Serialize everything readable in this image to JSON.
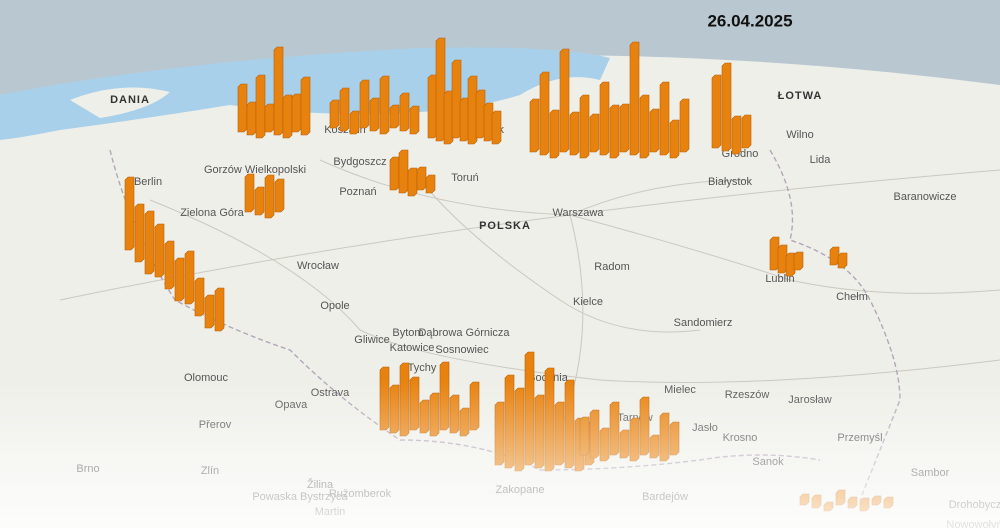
{
  "date": "26.04.2025",
  "labels": [
    "DANIA",
    "Koszalin",
    "Gdańsk",
    "Bydgoszcz",
    "Toruń",
    "Poznań",
    "Gorzów Wielkopolski",
    "Berlin",
    "Zielona Góra",
    "POLSKA",
    "Warszawa",
    "Białystok",
    "Grodno",
    "Lida",
    "Baranowicze",
    "Wilno",
    "ŁOTWA",
    "Wrocław",
    "Radom",
    "Kielce",
    "Lublin",
    "Chełm",
    "Opole",
    "Bytom",
    "Dąbrowa Górnicza",
    "Katowice",
    "Gliwice",
    "Tychy",
    "Sosnowiec",
    "Bochnia",
    "Tarnów",
    "Rzeszów",
    "Mielec",
    "Jarosław",
    "Przemyśl",
    "Sanok",
    "Krosno",
    "Jasło",
    "Bardejów",
    "Zakopane",
    "Žilina",
    "Ružomberok",
    "Martin",
    "Olomouc",
    "Zlín",
    "Brno",
    "Ostrava",
    "Opava",
    "Přerov",
    "Sandomierz",
    "Sambor",
    "Drohobycz",
    "Nowowołyńsk",
    "Powaska Bystrzyca"
  ],
  "bars": {
    "values": [
      45,
      30,
      60,
      25,
      85,
      40,
      35,
      55,
      25,
      40,
      20,
      45,
      30,
      55,
      20,
      35,
      25,
      60,
      100,
      50,
      75,
      40,
      65,
      45,
      35,
      30,
      50,
      80,
      45,
      100,
      40,
      60,
      35,
      70,
      50,
      45,
      110,
      60,
      40,
      70,
      35,
      50,
      70,
      85,
      35,
      30,
      30,
      40,
      25,
      20,
      15,
      35,
      25,
      40,
      30,
      70,
      55,
      60,
      50,
      45,
      40,
      50,
      35,
      30,
      40,
      30,
      25,
      20,
      15,
      15,
      12,
      60,
      45,
      70,
      50,
      30,
      40,
      65,
      35,
      25,
      45,
      60,
      90,
      80,
      110,
      70,
      100,
      60,
      85,
      50,
      40,
      35,
      45,
      30,
      50,
      25,
      40,
      55,
      20,
      45,
      30,
      8,
      10,
      6,
      12,
      8,
      10,
      6,
      8
    ]
  }
}
